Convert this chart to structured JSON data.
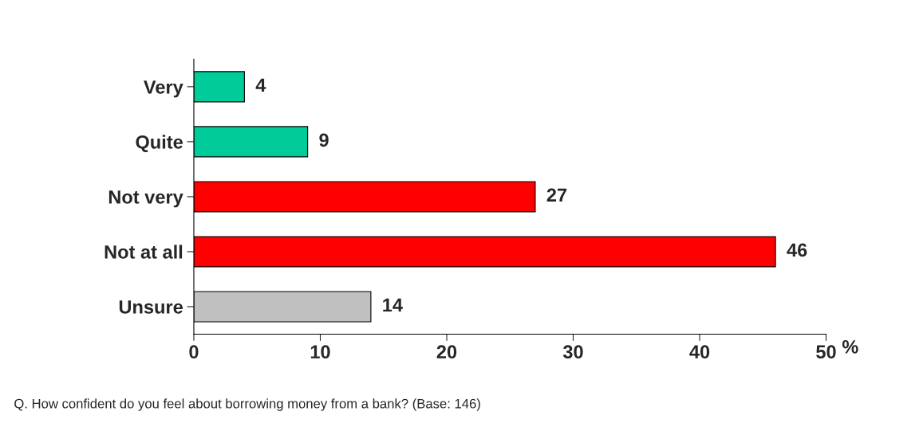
{
  "chart_data": {
    "type": "bar",
    "orientation": "horizontal",
    "categories": [
      "Very",
      "Quite",
      "Not very",
      "Not at all",
      "Unsure"
    ],
    "values": [
      4,
      9,
      27,
      46,
      14
    ],
    "colors": [
      "#00cc99",
      "#00cc99",
      "#ff0000",
      "#ff0000",
      "#c0c0c0"
    ],
    "xlim": [
      0,
      50
    ],
    "xticks": [
      0,
      10,
      20,
      30,
      40,
      50
    ],
    "xlabel": "%",
    "data_labels": true,
    "grid": false,
    "annotations": [
      "Q. How confident do you feel about borrowing money from a bank? (Base: 146)"
    ]
  }
}
